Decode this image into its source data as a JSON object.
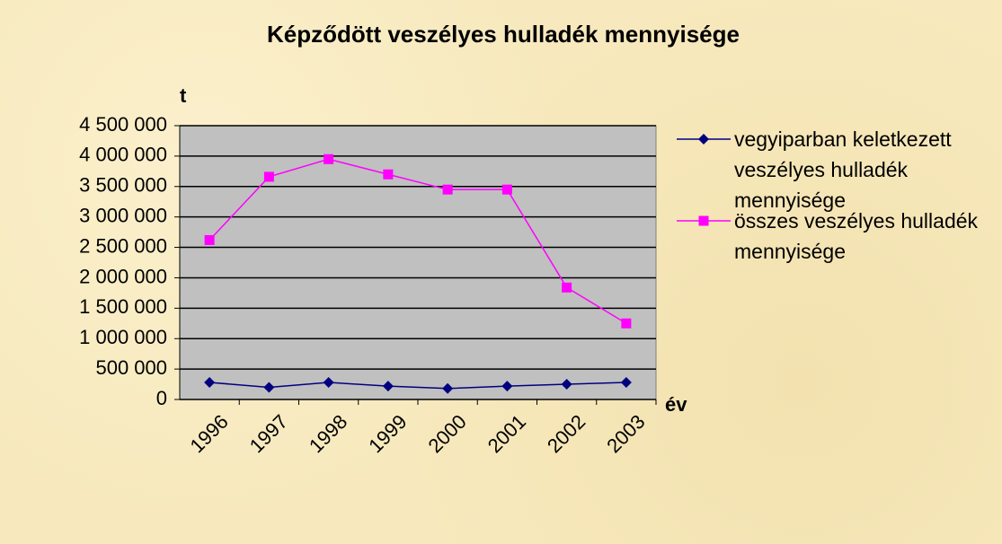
{
  "chart_data": {
    "type": "line",
    "title": "Képződött veszélyes hulladék mennyisége",
    "y_label": "t",
    "x_label": "év",
    "categories": [
      "1996",
      "1997",
      "1998",
      "1999",
      "2000",
      "2001",
      "2002",
      "2003"
    ],
    "series": [
      {
        "name": "vegyiparban keletkezett veszélyes hulladék mennyisége",
        "color": "#000080",
        "marker": "diamond",
        "values": [
          280000,
          200000,
          280000,
          220000,
          180000,
          220000,
          250000,
          280000
        ]
      },
      {
        "name": "összes veszélyes hulladék mennyisége",
        "color": "#ff00ff",
        "marker": "square",
        "values": [
          2620000,
          3660000,
          3950000,
          3700000,
          3450000,
          3450000,
          1840000,
          1250000
        ]
      }
    ],
    "ylim": [
      0,
      4500000
    ],
    "yticks": [
      0,
      {
        "value": 500000,
        "label": "500 000"
      },
      {
        "value": 1000000,
        "label": "1 000 000"
      },
      {
        "value": 1500000,
        "label": "1 500 000"
      },
      {
        "value": 2000000,
        "label": "2 000 000"
      },
      {
        "value": 2500000,
        "label": "2 500 000"
      },
      {
        "value": 3000000,
        "label": "3 000 000"
      },
      {
        "value": 3500000,
        "label": "3 500 000"
      },
      {
        "value": 4000000,
        "label": "4 000 000"
      },
      {
        "value": 4500000,
        "label": "4 500 000"
      }
    ],
    "grid": true,
    "plot_background": "#c0c0c0",
    "legend": "right"
  }
}
